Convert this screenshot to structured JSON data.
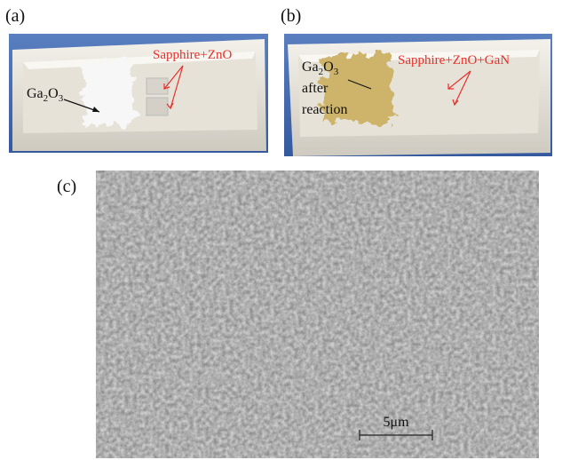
{
  "panel_a": {
    "label": "(a)",
    "powder_label": [
      "Ga",
      "2",
      "O",
      "3"
    ],
    "sample_label": "Sapphire+ZnO"
  },
  "panel_b": {
    "label": "(b)",
    "powder_label": [
      "Ga",
      "2",
      "O",
      "3"
    ],
    "powder_note": [
      "after",
      "reaction"
    ],
    "sample_label": "Sapphire+ZnO+GaN"
  },
  "panel_c": {
    "label": "(c)",
    "scale_bar": "5μm"
  }
}
